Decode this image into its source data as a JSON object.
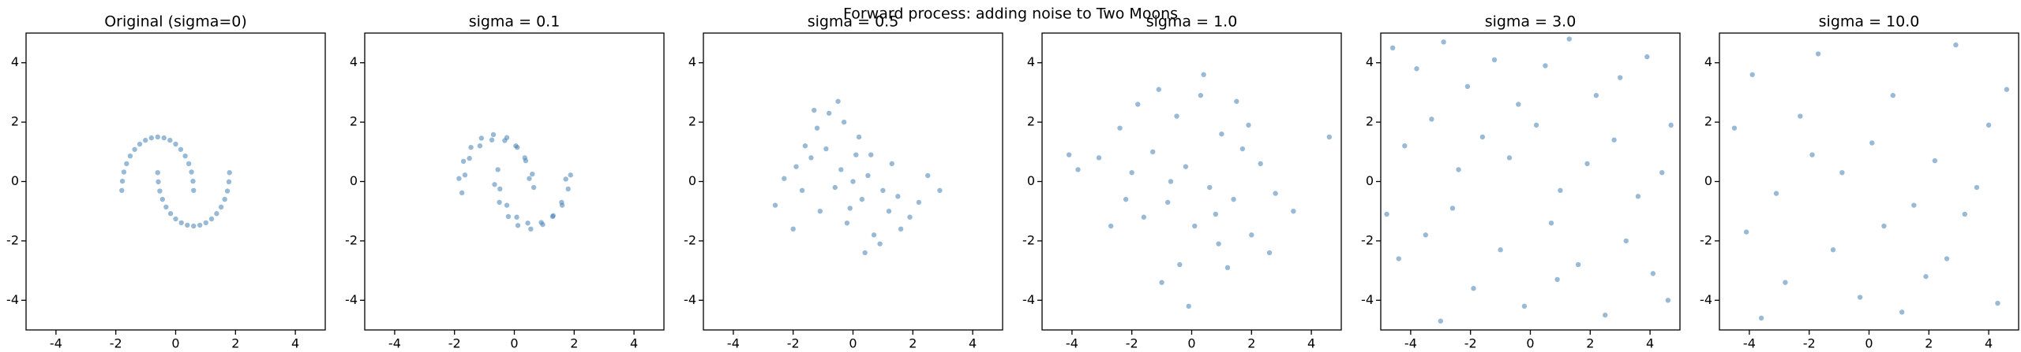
{
  "title": "Forward process: adding noise to Two Moons",
  "chart_data": [
    {
      "type": "scatter",
      "title": "Original (sigma=0)",
      "color": "#4682b4",
      "xlim": [
        -5,
        5
      ],
      "ylim": [
        -5,
        5
      ],
      "xticks": [
        -4,
        -2,
        0,
        2,
        4
      ],
      "yticks": [
        -4,
        -2,
        0,
        2,
        4
      ],
      "x": [
        0.6,
        0.58,
        0.53,
        0.44,
        0.32,
        0.17,
        0.0,
        -0.19,
        -0.39,
        -0.6,
        -0.81,
        -1.01,
        -1.2,
        -1.37,
        -1.52,
        -1.64,
        -1.73,
        -1.78,
        -1.8,
        -0.6,
        -0.58,
        -0.53,
        -0.44,
        -0.32,
        -0.17,
        0.0,
        0.19,
        0.39,
        0.6,
        0.81,
        1.01,
        1.2,
        1.37,
        1.52,
        1.64,
        1.73,
        1.78,
        1.8
      ],
      "y": [
        -0.3,
        0.01,
        0.32,
        0.6,
        0.86,
        1.08,
        1.26,
        1.39,
        1.47,
        1.5,
        1.47,
        1.39,
        1.26,
        1.08,
        0.86,
        0.6,
        0.32,
        0.01,
        -0.3,
        0.3,
        -0.01,
        -0.32,
        -0.6,
        -0.86,
        -1.08,
        -1.26,
        -1.39,
        -1.47,
        -1.5,
        -1.47,
        -1.39,
        -1.26,
        -1.08,
        -0.86,
        -0.6,
        -0.32,
        -0.01,
        0.3
      ]
    },
    {
      "type": "scatter",
      "title": "sigma = 0.1",
      "color": "#4682b4",
      "xlim": [
        -5,
        5
      ],
      "ylim": [
        -5,
        5
      ],
      "xticks": [
        -4,
        -2,
        0,
        2,
        4
      ],
      "yticks": [
        -4,
        -2,
        0,
        2,
        4
      ],
      "x": [
        0.65,
        0.5,
        0.6,
        0.38,
        0.35,
        0.1,
        0.05,
        -0.25,
        -0.32,
        -0.7,
        -0.75,
        -1.1,
        -1.15,
        -1.45,
        -1.5,
        -1.7,
        -1.65,
        -1.85,
        -1.75,
        -0.55,
        -0.66,
        -0.48,
        -0.5,
        -0.25,
        -0.2,
        0.08,
        0.12,
        0.45,
        0.55,
        0.9,
        0.95,
        1.28,
        1.3,
        1.6,
        1.58,
        1.8,
        1.72,
        1.88
      ],
      "y": [
        -0.2,
        0.1,
        0.25,
        0.7,
        0.8,
        1.15,
        1.2,
        1.48,
        1.38,
        1.58,
        1.4,
        1.46,
        1.2,
        1.15,
        0.78,
        0.68,
        0.22,
        0.1,
        -0.38,
        0.4,
        -0.1,
        -0.25,
        -0.7,
        -0.8,
        -1.18,
        -1.2,
        -1.48,
        -1.4,
        -1.6,
        -1.38,
        -1.45,
        -1.18,
        -1.15,
        -0.8,
        -0.7,
        -0.25,
        0.08,
        0.22
      ]
    },
    {
      "type": "scatter",
      "title": "sigma = 0.5",
      "color": "#4682b4",
      "xlim": [
        -5,
        5
      ],
      "ylim": [
        -5,
        5
      ],
      "xticks": [
        -4,
        -2,
        0,
        2,
        4
      ],
      "yticks": [
        -4,
        -2,
        0,
        2,
        4
      ],
      "x": [
        -1.6,
        -1.2,
        -0.8,
        -0.3,
        0.2,
        0.6,
        -1.9,
        -1.4,
        -0.9,
        -0.4,
        0.1,
        0.5,
        1.0,
        1.5,
        -2.3,
        -1.7,
        -0.6,
        0.3,
        1.2,
        1.9,
        -1.1,
        -0.2,
        0.7,
        1.6,
        2.2,
        -0.5,
        0.4,
        1.3,
        -2.6,
        2.5,
        -0.1,
        0.9,
        -1.3,
        0.0,
        2.9,
        -2.0
      ],
      "y": [
        1.2,
        1.8,
        2.3,
        2.0,
        1.5,
        0.9,
        0.5,
        0.8,
        1.1,
        0.4,
        0.9,
        0.2,
        -0.3,
        -0.5,
        0.1,
        -0.3,
        -0.2,
        -0.6,
        -1.0,
        -1.2,
        -1.0,
        -1.4,
        -1.8,
        -1.6,
        -0.7,
        2.7,
        -2.4,
        0.6,
        -0.8,
        0.2,
        -0.9,
        -2.1,
        2.4,
        0.0,
        -0.3,
        -1.6
      ]
    },
    {
      "type": "scatter",
      "title": "sigma = 1.0",
      "color": "#4682b4",
      "xlim": [
        -5,
        5
      ],
      "ylim": [
        -5,
        5
      ],
      "xticks": [
        -4,
        -2,
        0,
        2,
        4
      ],
      "yticks": [
        -4,
        -2,
        0,
        2,
        4
      ],
      "x": [
        -2.4,
        -1.8,
        -1.1,
        -0.5,
        0.3,
        1.0,
        1.7,
        2.3,
        -3.1,
        -2.0,
        -1.3,
        -0.2,
        0.6,
        1.4,
        2.8,
        -1.6,
        -0.8,
        0.1,
        0.9,
        2.0,
        -2.7,
        -0.4,
        1.2,
        3.4,
        -3.8,
        -1.0,
        0.4,
        1.9,
        -0.7,
        0.8,
        -2.2,
        2.6,
        -0.1,
        1.5,
        -4.1,
        4.6
      ],
      "y": [
        1.8,
        2.6,
        3.1,
        2.2,
        2.9,
        1.6,
        1.1,
        0.6,
        0.8,
        0.3,
        1.0,
        0.5,
        -0.2,
        -0.6,
        -0.4,
        -1.2,
        -0.7,
        -1.5,
        -2.1,
        -1.8,
        -1.5,
        -2.8,
        -2.9,
        -1.0,
        0.4,
        -3.4,
        3.6,
        1.9,
        0.0,
        -1.1,
        -0.6,
        -2.4,
        -4.2,
        2.7,
        0.9,
        1.5
      ]
    },
    {
      "type": "scatter",
      "title": "sigma = 3.0",
      "color": "#4682b4",
      "xlim": [
        -5,
        5
      ],
      "ylim": [
        -5,
        5
      ],
      "xticks": [
        -4,
        -2,
        0,
        2,
        4
      ],
      "yticks": [
        -4,
        -2,
        0,
        2,
        4
      ],
      "x": [
        -4.6,
        -3.8,
        -2.9,
        -2.1,
        -1.2,
        -0.4,
        0.5,
        1.3,
        2.2,
        3.0,
        3.9,
        4.7,
        -4.2,
        -3.3,
        -2.4,
        -1.6,
        -0.7,
        0.2,
        1.0,
        1.9,
        2.8,
        3.6,
        4.4,
        -4.8,
        -3.5,
        -2.6,
        -1.0,
        0.7,
        1.6,
        3.2,
        4.1,
        -1.9,
        -0.2,
        2.5,
        -3.0,
        0.9,
        4.6,
        -4.4
      ],
      "y": [
        4.5,
        3.8,
        4.7,
        3.2,
        4.1,
        2.6,
        3.9,
        4.8,
        2.9,
        3.5,
        4.2,
        1.9,
        1.2,
        2.1,
        0.4,
        1.5,
        0.8,
        1.9,
        -0.3,
        0.6,
        1.4,
        -0.5,
        0.3,
        -1.1,
        -1.8,
        -0.9,
        -2.3,
        -1.4,
        -2.8,
        -2.0,
        -3.1,
        -3.6,
        -4.2,
        -4.5,
        -4.7,
        -3.3,
        -4.0,
        -2.6
      ]
    },
    {
      "type": "scatter",
      "title": "sigma = 10.0",
      "color": "#4682b4",
      "xlim": [
        -5,
        5
      ],
      "ylim": [
        -5,
        5
      ],
      "xticks": [
        -4,
        -2,
        0,
        2,
        4
      ],
      "yticks": [
        -4,
        -2,
        0,
        2,
        4
      ],
      "x": [
        -3.9,
        -1.7,
        0.8,
        2.9,
        4.6,
        -4.5,
        -2.3,
        0.1,
        2.2,
        4.0,
        -3.1,
        -0.9,
        1.5,
        3.6,
        -4.1,
        -1.2,
        0.5,
        2.6,
        -2.8,
        -0.3,
        1.9,
        4.3,
        -3.6,
        1.1,
        -1.9,
        3.2
      ],
      "y": [
        3.6,
        4.3,
        2.9,
        4.6,
        3.1,
        1.8,
        2.2,
        1.3,
        0.7,
        1.9,
        -0.4,
        0.3,
        -0.8,
        -0.2,
        -1.7,
        -2.3,
        -1.5,
        -2.6,
        -3.4,
        -3.9,
        -3.2,
        -4.1,
        -4.6,
        -4.4,
        0.9,
        -1.1
      ]
    }
  ]
}
